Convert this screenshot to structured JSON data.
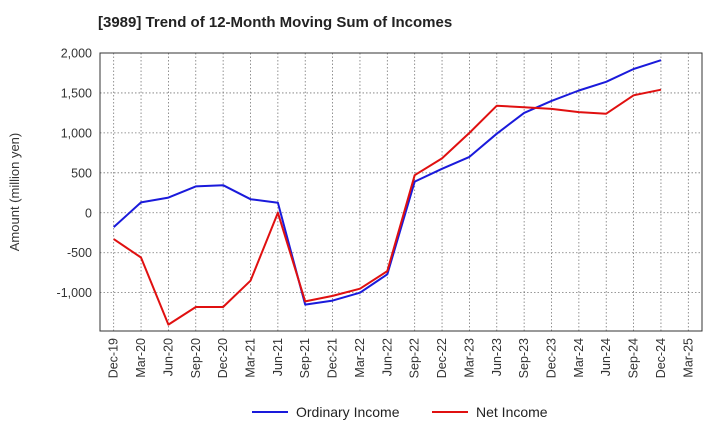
{
  "chart_data": {
    "type": "line",
    "title": "[3989]  Trend of 12-Month Moving Sum of Incomes",
    "ylabel": "Amount (million yen)",
    "xlabel": "",
    "ylim": [
      -1480,
      2000
    ],
    "yticks": [
      2000,
      1500,
      1000,
      500,
      0,
      -500,
      -1000
    ],
    "ytick_labels": [
      "2,000",
      "1,500",
      "1,000",
      "500",
      "0",
      "-500",
      "-1,000"
    ],
    "categories": [
      "Dec-19",
      "Mar-20",
      "Jun-20",
      "Sep-20",
      "Dec-20",
      "Mar-21",
      "Jun-21",
      "Sep-21",
      "Dec-21",
      "Mar-22",
      "Jun-22",
      "Sep-22",
      "Dec-22",
      "Mar-23",
      "Jun-23",
      "Sep-23",
      "Dec-23",
      "Mar-24",
      "Jun-24",
      "Sep-24",
      "Dec-24",
      "Mar-25"
    ],
    "grid": true,
    "legend_position": "bottom",
    "series": [
      {
        "name": "Ordinary Income",
        "color": "#1a1adb",
        "values": [
          -180,
          130,
          190,
          330,
          345,
          170,
          125,
          -1150,
          -1100,
          -1000,
          -770,
          390,
          550,
          700,
          990,
          1250,
          1400,
          1530,
          1640,
          1800,
          1910,
          null
        ]
      },
      {
        "name": "Net Income",
        "color": "#e01010",
        "values": [
          -330,
          -560,
          -1400,
          -1180,
          -1180,
          -850,
          0,
          -1110,
          -1040,
          -950,
          -730,
          470,
          680,
          1000,
          1340,
          1320,
          1300,
          1260,
          1240,
          1470,
          1540,
          null
        ]
      }
    ]
  }
}
